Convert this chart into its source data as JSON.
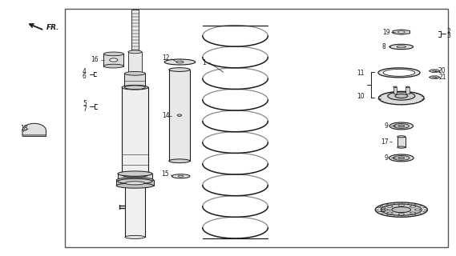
{
  "bg": "#ffffff",
  "lc": "#1a1a1a",
  "fc": "#f0f0f0",
  "fc2": "#e0e0e0",
  "border": [
    0.14,
    0.03,
    0.985,
    0.97
  ],
  "figsize": [
    5.69,
    3.2
  ],
  "dpi": 100
}
